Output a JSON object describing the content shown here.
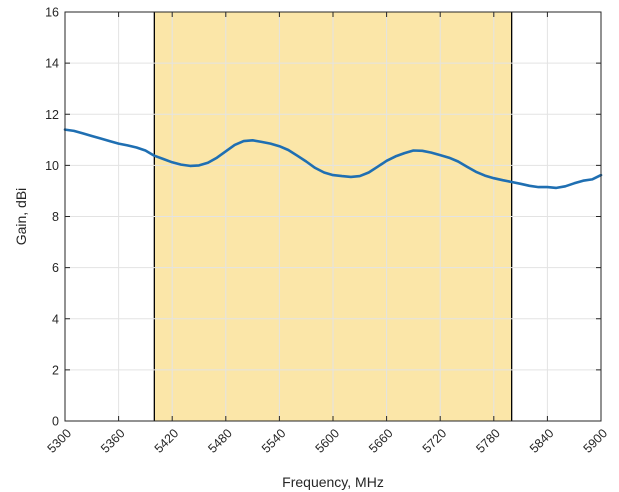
{
  "chart_data": {
    "type": "line",
    "title": "",
    "xlabel": "Frequency, MHz",
    "ylabel": "Gain, dBi",
    "xlim": [
      5300,
      5900
    ],
    "ylim": [
      0,
      16
    ],
    "x_ticks": [
      5300,
      5360,
      5420,
      5480,
      5540,
      5600,
      5660,
      5720,
      5780,
      5840,
      5900
    ],
    "y_ticks": [
      0,
      2,
      4,
      6,
      8,
      10,
      12,
      14,
      16
    ],
    "grid": true,
    "legend": "none",
    "colors": {
      "line": "#1f6fb2",
      "band_fill": "#fbe6a8",
      "band_edge": "#000000",
      "grid": "#e3e3e3",
      "axes": "#262626"
    },
    "highlight_band": {
      "x_start": 5400,
      "x_end": 5800
    },
    "series": [
      {
        "x": [
          5300,
          5310,
          5320,
          5330,
          5340,
          5350,
          5360,
          5370,
          5380,
          5390,
          5400,
          5410,
          5420,
          5430,
          5440,
          5450,
          5460,
          5470,
          5480,
          5490,
          5500,
          5510,
          5520,
          5530,
          5540,
          5550,
          5560,
          5570,
          5580,
          5590,
          5600,
          5610,
          5620,
          5630,
          5640,
          5650,
          5660,
          5670,
          5680,
          5690,
          5700,
          5710,
          5720,
          5730,
          5740,
          5750,
          5760,
          5770,
          5780,
          5790,
          5800,
          5810,
          5820,
          5830,
          5840,
          5850,
          5860,
          5870,
          5880,
          5890,
          5900
        ],
        "values": [
          11.4,
          11.35,
          11.25,
          11.15,
          11.05,
          10.95,
          10.85,
          10.78,
          10.7,
          10.58,
          10.38,
          10.25,
          10.12,
          10.03,
          9.98,
          10.0,
          10.1,
          10.3,
          10.55,
          10.8,
          10.95,
          10.98,
          10.92,
          10.85,
          10.75,
          10.6,
          10.38,
          10.15,
          9.9,
          9.72,
          9.62,
          9.58,
          9.55,
          9.58,
          9.72,
          9.95,
          10.18,
          10.35,
          10.48,
          10.58,
          10.57,
          10.5,
          10.4,
          10.3,
          10.15,
          9.95,
          9.75,
          9.6,
          9.5,
          9.42,
          9.35,
          9.28,
          9.2,
          9.15,
          9.15,
          9.12,
          9.18,
          9.3,
          9.4,
          9.45,
          9.62
        ]
      }
    ]
  }
}
